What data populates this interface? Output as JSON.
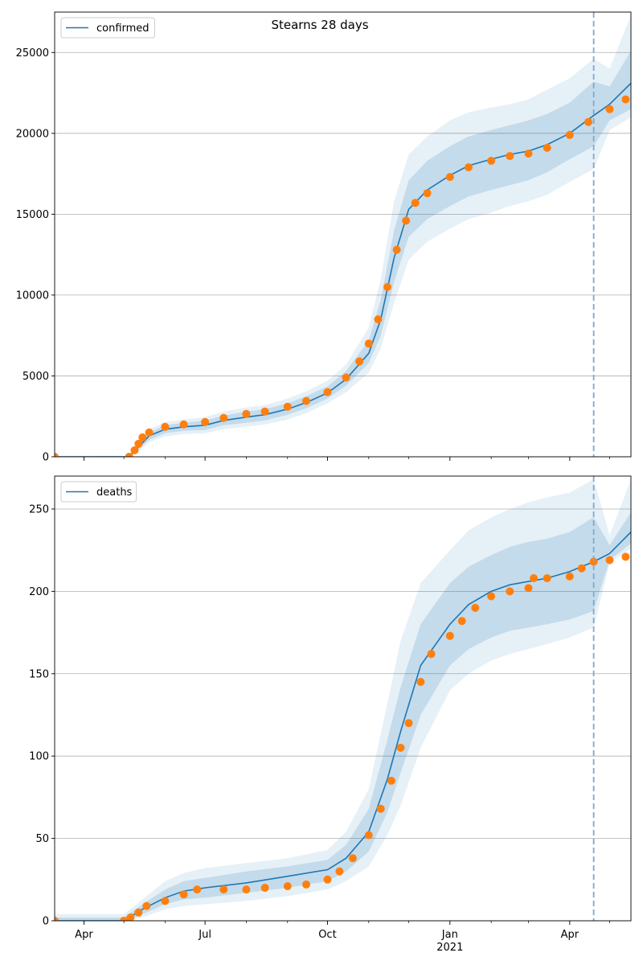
{
  "figure": {
    "suptitle": "Stearns 28 days"
  },
  "colors": {
    "model": "#1f77b4",
    "observed": "#ff7f0e",
    "band": "#1f77b4",
    "grid": "#b0b0b0",
    "forecast_line": "#7fa8cf"
  },
  "x_axis": {
    "start": "2020-03-10",
    "end": "2021-05-17",
    "major_ticks": [
      {
        "date": "2020-04-01",
        "label": "Apr"
      },
      {
        "date": "2020-07-01",
        "label": "Jul"
      },
      {
        "date": "2020-10-01",
        "label": "Oct"
      },
      {
        "date": "2021-01-01",
        "label": "Jan",
        "sublabel": "2021"
      },
      {
        "date": "2021-04-01",
        "label": "Apr"
      }
    ],
    "minor_ticks": [
      "2020-05-01",
      "2020-06-01",
      "2020-08-01",
      "2020-09-01",
      "2020-11-01",
      "2020-12-01",
      "2021-02-01",
      "2021-03-01",
      "2021-05-01"
    ],
    "forecast_start": "2021-04-19"
  },
  "chart_data": [
    {
      "type": "line",
      "legend": "confirmed",
      "legend_position": "upper-left",
      "grid": "horizontal",
      "ylim": [
        0,
        27500
      ],
      "yticks": [
        0,
        5000,
        10000,
        15000,
        20000,
        25000
      ],
      "ytick_labels": [
        "0",
        "5000",
        "10000",
        "15000",
        "20000",
        "25000"
      ],
      "model": [
        [
          "2020-03-10",
          0,
          0,
          10,
          0,
          20
        ],
        [
          "2020-05-05",
          0,
          0,
          20,
          0,
          40
        ],
        [
          "2020-05-12",
          600,
          450,
          750,
          300,
          900
        ],
        [
          "2020-05-20",
          1300,
          1050,
          1500,
          900,
          1700
        ],
        [
          "2020-06-01",
          1700,
          1450,
          1950,
          1250,
          2150
        ],
        [
          "2020-06-15",
          1850,
          1600,
          2100,
          1400,
          2300
        ],
        [
          "2020-07-01",
          1950,
          1650,
          2250,
          1450,
          2450
        ],
        [
          "2020-07-15",
          2250,
          1950,
          2550,
          1700,
          2800
        ],
        [
          "2020-08-01",
          2450,
          2100,
          2800,
          1850,
          3050
        ],
        [
          "2020-08-15",
          2600,
          2250,
          2950,
          2000,
          3200
        ],
        [
          "2020-09-01",
          2950,
          2600,
          3300,
          2300,
          3600
        ],
        [
          "2020-09-15",
          3350,
          3000,
          3750,
          2700,
          4050
        ],
        [
          "2020-10-01",
          3950,
          3600,
          4350,
          3300,
          4700
        ],
        [
          "2020-10-15",
          4800,
          4400,
          5300,
          4000,
          5700
        ],
        [
          "2020-11-01",
          6400,
          5800,
          7200,
          5200,
          8000
        ],
        [
          "2020-11-10",
          8500,
          7500,
          9700,
          6700,
          11000
        ],
        [
          "2020-11-20",
          12300,
          10800,
          14000,
          9500,
          15800
        ],
        [
          "2020-12-01",
          15300,
          13600,
          17100,
          12200,
          18700
        ],
        [
          "2020-12-15",
          16500,
          14700,
          18300,
          13300,
          19800
        ],
        [
          "2021-01-01",
          17400,
          15500,
          19200,
          14100,
          20800
        ],
        [
          "2021-01-15",
          18000,
          16100,
          19800,
          14700,
          21300
        ],
        [
          "2021-02-01",
          18400,
          16500,
          20200,
          15100,
          21600
        ],
        [
          "2021-02-15",
          18700,
          16800,
          20500,
          15500,
          21800
        ],
        [
          "2021-03-01",
          18900,
          17100,
          20800,
          15800,
          22100
        ],
        [
          "2021-03-15",
          19300,
          17600,
          21200,
          16200,
          22700
        ],
        [
          "2021-04-01",
          20000,
          18400,
          21900,
          17000,
          23400
        ],
        [
          "2021-04-19",
          21100,
          19200,
          23200,
          17800,
          24600
        ],
        [
          "2021-05-01",
          21800,
          20800,
          22900,
          20200,
          24000
        ],
        [
          "2021-05-17",
          23100,
          21500,
          25100,
          21000,
          27300
        ]
      ],
      "observed": [
        [
          "2020-03-10",
          0
        ],
        [
          "2020-05-05",
          0
        ],
        [
          "2020-05-09",
          400
        ],
        [
          "2020-05-12",
          800
        ],
        [
          "2020-05-15",
          1200
        ],
        [
          "2020-05-20",
          1500
        ],
        [
          "2020-06-01",
          1850
        ],
        [
          "2020-06-15",
          2000
        ],
        [
          "2020-07-01",
          2150
        ],
        [
          "2020-07-15",
          2400
        ],
        [
          "2020-08-01",
          2650
        ],
        [
          "2020-08-15",
          2800
        ],
        [
          "2020-09-01",
          3100
        ],
        [
          "2020-09-15",
          3450
        ],
        [
          "2020-10-01",
          4000
        ],
        [
          "2020-10-15",
          4900
        ],
        [
          "2020-10-25",
          5900
        ],
        [
          "2020-11-01",
          7000
        ],
        [
          "2020-11-08",
          8500
        ],
        [
          "2020-11-15",
          10500
        ],
        [
          "2020-11-22",
          12800
        ],
        [
          "2020-11-29",
          14600
        ],
        [
          "2020-12-06",
          15700
        ],
        [
          "2020-12-15",
          16300
        ],
        [
          "2021-01-01",
          17300
        ],
        [
          "2021-01-15",
          17900
        ],
        [
          "2021-02-01",
          18300
        ],
        [
          "2021-02-15",
          18600
        ],
        [
          "2021-03-01",
          18750
        ],
        [
          "2021-03-15",
          19100
        ],
        [
          "2021-04-01",
          19900
        ],
        [
          "2021-04-15",
          20700
        ],
        [
          "2021-05-01",
          21500
        ],
        [
          "2021-05-13",
          22100
        ]
      ]
    },
    {
      "type": "line",
      "legend": "deaths",
      "legend_position": "upper-left",
      "grid": "horizontal",
      "ylim": [
        0,
        270
      ],
      "yticks": [
        0,
        50,
        100,
        150,
        200,
        250
      ],
      "ytick_labels": [
        "0",
        "50",
        "100",
        "150",
        "200",
        "250"
      ],
      "model": [
        [
          "2020-03-10",
          0,
          0,
          2,
          0,
          4
        ],
        [
          "2020-05-01",
          0,
          0,
          2,
          0,
          4
        ],
        [
          "2020-05-15",
          7,
          4,
          10,
          2,
          13
        ],
        [
          "2020-06-01",
          14,
          10,
          19,
          7,
          24
        ],
        [
          "2020-06-15",
          18,
          13,
          24,
          9,
          29
        ],
        [
          "2020-07-01",
          20,
          14,
          26,
          10,
          32
        ],
        [
          "2020-08-01",
          23,
          17,
          30,
          12,
          35
        ],
        [
          "2020-09-01",
          27,
          20,
          33,
          15,
          38
        ],
        [
          "2020-10-01",
          31,
          24,
          37,
          19,
          43
        ],
        [
          "2020-10-15",
          38,
          30,
          46,
          24,
          54
        ],
        [
          "2020-11-01",
          54,
          42,
          68,
          33,
          80
        ],
        [
          "2020-11-15",
          86,
          66,
          110,
          52,
          132
        ],
        [
          "2020-11-25",
          115,
          90,
          142,
          70,
          170
        ],
        [
          "2020-12-10",
          155,
          125,
          180,
          105,
          205
        ],
        [
          "2021-01-01",
          180,
          155,
          205,
          140,
          225
        ],
        [
          "2021-01-15",
          192,
          165,
          215,
          150,
          237
        ],
        [
          "2021-02-01",
          200,
          172,
          222,
          158,
          245
        ],
        [
          "2021-02-15",
          204,
          176,
          227,
          162,
          250
        ],
        [
          "2021-03-01",
          206,
          178,
          230,
          165,
          254
        ],
        [
          "2021-03-15",
          208,
          180,
          232,
          168,
          257
        ],
        [
          "2021-04-01",
          212,
          183,
          236,
          172,
          260
        ],
        [
          "2021-04-19",
          218,
          188,
          245,
          178,
          268
        ],
        [
          "2021-05-01",
          223,
          219,
          228,
          217,
          234
        ],
        [
          "2021-05-17",
          236,
          229,
          248,
          226,
          268
        ]
      ],
      "observed": [
        [
          "2020-03-10",
          0
        ],
        [
          "2020-05-01",
          0
        ],
        [
          "2020-05-06",
          2
        ],
        [
          "2020-05-12",
          5
        ],
        [
          "2020-05-18",
          9
        ],
        [
          "2020-06-01",
          12
        ],
        [
          "2020-06-15",
          16
        ],
        [
          "2020-06-25",
          19
        ],
        [
          "2020-07-15",
          19
        ],
        [
          "2020-08-01",
          19
        ],
        [
          "2020-08-15",
          20
        ],
        [
          "2020-09-01",
          21
        ],
        [
          "2020-09-15",
          22
        ],
        [
          "2020-10-01",
          25
        ],
        [
          "2020-10-10",
          30
        ],
        [
          "2020-10-20",
          38
        ],
        [
          "2020-11-01",
          52
        ],
        [
          "2020-11-10",
          68
        ],
        [
          "2020-11-18",
          85
        ],
        [
          "2020-11-25",
          105
        ],
        [
          "2020-12-01",
          120
        ],
        [
          "2020-12-10",
          145
        ],
        [
          "2020-12-18",
          162
        ],
        [
          "2021-01-01",
          173
        ],
        [
          "2021-01-10",
          182
        ],
        [
          "2021-01-20",
          190
        ],
        [
          "2021-02-01",
          197
        ],
        [
          "2021-02-15",
          200
        ],
        [
          "2021-03-01",
          202
        ],
        [
          "2021-03-05",
          208
        ],
        [
          "2021-03-15",
          208
        ],
        [
          "2021-04-01",
          209
        ],
        [
          "2021-04-10",
          214
        ],
        [
          "2021-04-19",
          218
        ],
        [
          "2021-05-01",
          219
        ],
        [
          "2021-05-13",
          221
        ]
      ]
    }
  ]
}
